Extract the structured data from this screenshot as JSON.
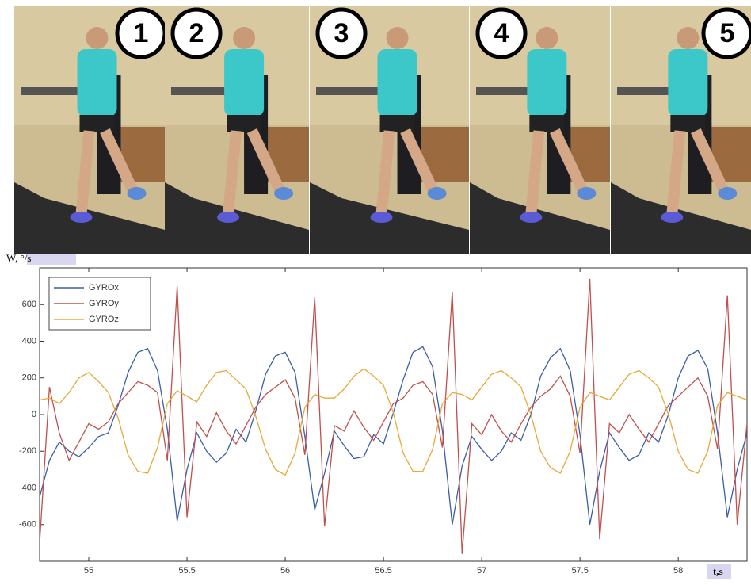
{
  "photo_strip": {
    "labels": [
      "1",
      "2",
      "3",
      "4",
      "5"
    ]
  },
  "chart_data": {
    "type": "line",
    "ylabel": "W, °/s",
    "xlabel": "t,s",
    "x": [
      54.75,
      54.8,
      54.85,
      54.9,
      54.95,
      55,
      55.05,
      55.1,
      55.15,
      55.2,
      55.25,
      55.3,
      55.35,
      55.4,
      55.45,
      55.5,
      55.55,
      55.6,
      55.65,
      55.7,
      55.75,
      55.8,
      55.85,
      55.9,
      55.95,
      56,
      56.05,
      56.1,
      56.15,
      56.2,
      56.25,
      56.3,
      56.35,
      56.4,
      56.45,
      56.5,
      56.55,
      56.6,
      56.65,
      56.7,
      56.75,
      56.8,
      56.85,
      56.9,
      56.95,
      57,
      57.05,
      57.1,
      57.15,
      57.2,
      57.25,
      57.3,
      57.35,
      57.4,
      57.45,
      57.5,
      57.55,
      57.6,
      57.65,
      57.7,
      57.75,
      57.8,
      57.85,
      57.9,
      57.95,
      58,
      58.05,
      58.1,
      58.15,
      58.2,
      58.25,
      58.3,
      58.35
    ],
    "series": [
      {
        "name": "GYROx",
        "color": "#3a5ea8",
        "values": [
          -450,
          -250,
          -150,
          -200,
          -230,
          -180,
          -120,
          -100,
          50,
          230,
          340,
          360,
          240,
          -80,
          -580,
          -300,
          -100,
          -200,
          -260,
          -210,
          -80,
          -150,
          20,
          220,
          320,
          340,
          230,
          -120,
          -520,
          -320,
          -90,
          -170,
          -240,
          -230,
          -110,
          -160,
          10,
          190,
          340,
          370,
          260,
          -90,
          -600,
          -280,
          -120,
          -190,
          -250,
          -200,
          -100,
          -140,
          0,
          210,
          310,
          360,
          240,
          -110,
          -600,
          -310,
          -100,
          -180,
          -250,
          -220,
          -100,
          -150,
          0,
          200,
          320,
          350,
          250,
          -100,
          -560,
          -300,
          -100
        ]
      },
      {
        "name": "GYROy",
        "color": "#c0504d",
        "values": [
          -700,
          150,
          -100,
          -250,
          -150,
          -50,
          -80,
          -40,
          60,
          120,
          180,
          160,
          120,
          -250,
          700,
          -560,
          -40,
          -120,
          10,
          -90,
          -160,
          -60,
          40,
          110,
          150,
          190,
          90,
          -220,
          640,
          -610,
          -60,
          -90,
          20,
          -70,
          -140,
          -40,
          60,
          90,
          160,
          180,
          110,
          -180,
          670,
          -760,
          -50,
          -110,
          0,
          -90,
          -150,
          -50,
          40,
          100,
          140,
          210,
          100,
          -210,
          740,
          -680,
          -50,
          -100,
          0,
          -80,
          -150,
          -50,
          50,
          100,
          150,
          200,
          100,
          -190,
          650,
          -600,
          -50
        ]
      },
      {
        "name": "GYROz",
        "color": "#e8a838",
        "values": [
          80,
          90,
          60,
          120,
          200,
          230,
          180,
          120,
          -20,
          -220,
          -310,
          -320,
          -180,
          60,
          130,
          100,
          70,
          160,
          230,
          240,
          190,
          140,
          -10,
          -190,
          -300,
          -330,
          -210,
          40,
          110,
          90,
          90,
          140,
          210,
          250,
          210,
          160,
          10,
          -210,
          -310,
          -310,
          -190,
          60,
          120,
          110,
          80,
          150,
          220,
          240,
          200,
          150,
          0,
          -200,
          -290,
          -320,
          -200,
          40,
          120,
          100,
          80,
          150,
          220,
          240,
          200,
          150,
          0,
          -200,
          -300,
          -320,
          -200,
          50,
          120,
          100,
          80
        ]
      }
    ],
    "xlim": [
      54.75,
      58.35
    ],
    "ylim": [
      -800,
      800
    ],
    "xticks": [
      55,
      55.5,
      56,
      56.5,
      57,
      57.5,
      58
    ],
    "yticks": [
      -600,
      -400,
      -200,
      0,
      200,
      400,
      600
    ],
    "grid": false,
    "legend": "top-left"
  }
}
